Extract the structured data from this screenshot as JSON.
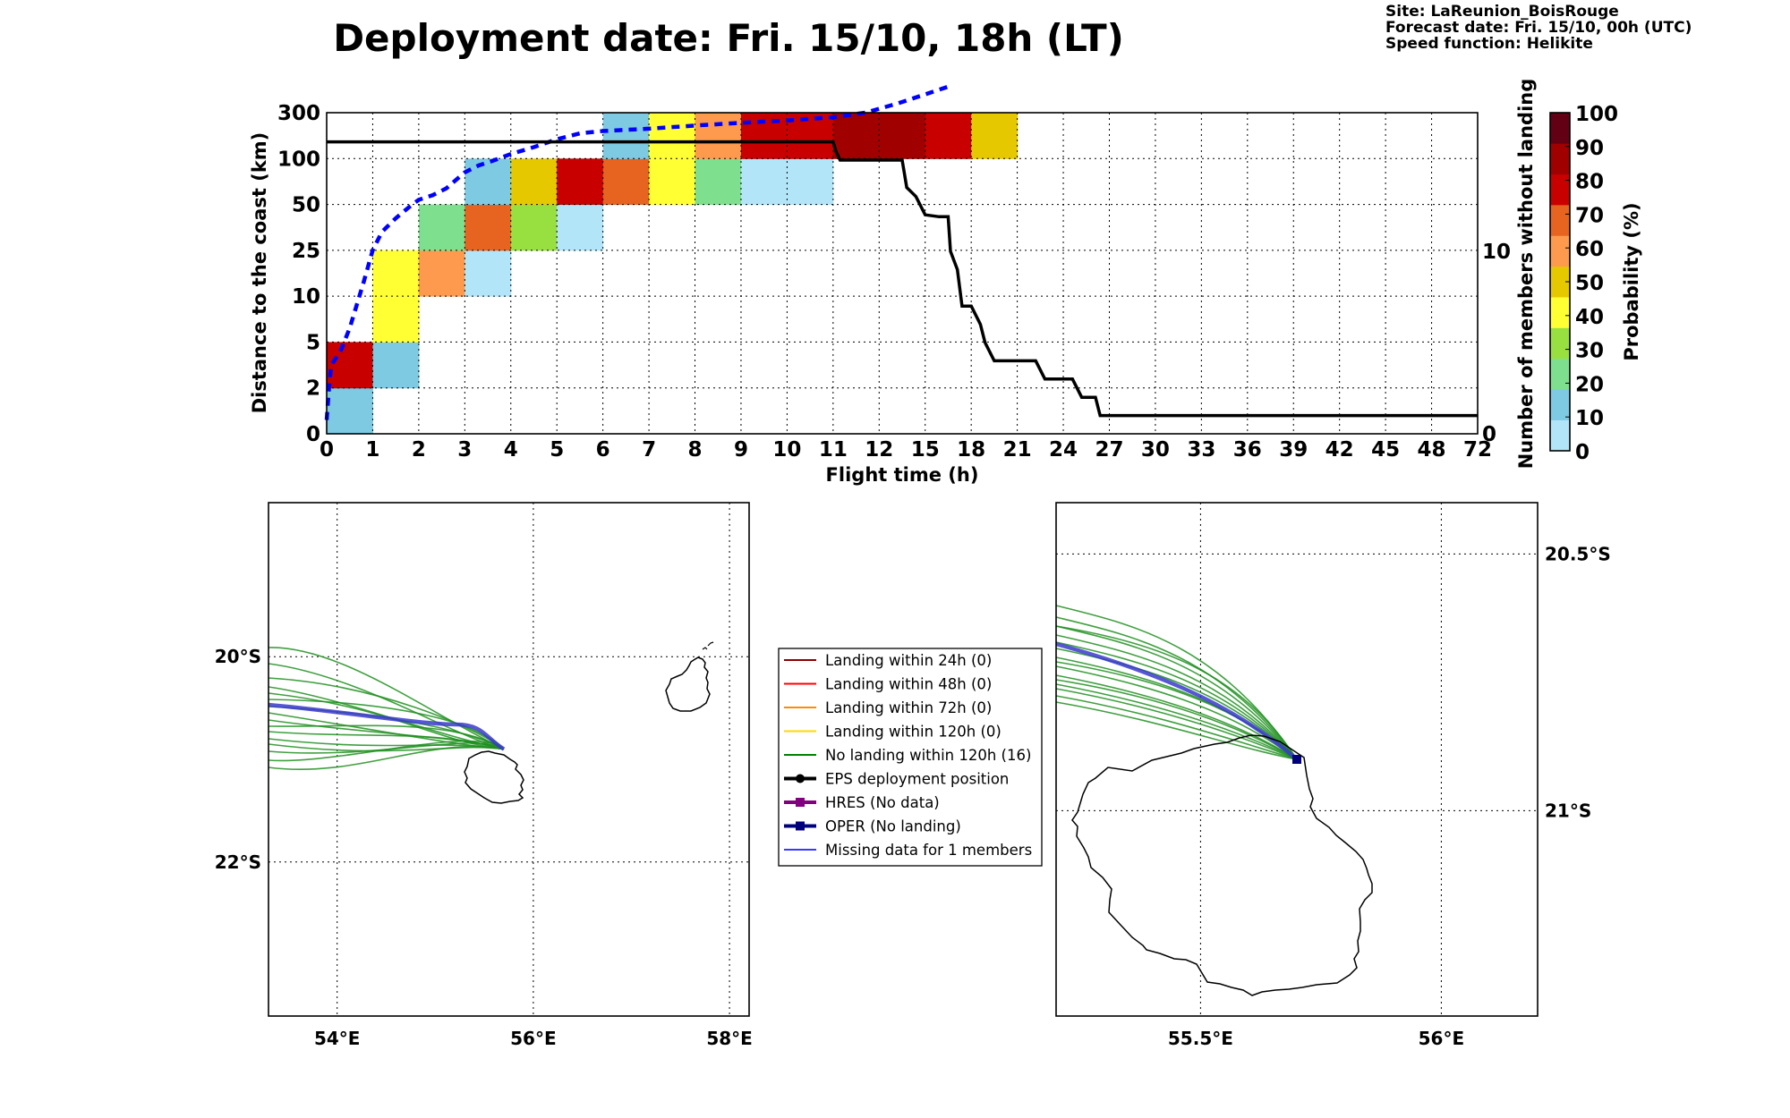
{
  "header": {
    "title": "Deployment date: Fri. 15/10, 18h (LT)",
    "site": "Site: LaReunion_BoisRouge",
    "forecast": "Forecast date: Fri. 15/10, 00h (UTC)",
    "speed": "Speed function: Helikite"
  },
  "chart_data": [
    {
      "type": "heatmap",
      "xlabel": "Flight time (h)",
      "ylabel": "Distance to the coast (km)",
      "y2label": "Number of members without landing",
      "x_ticks": [
        "0",
        "1",
        "2",
        "3",
        "4",
        "5",
        "6",
        "7",
        "8",
        "9",
        "10",
        "11",
        "12",
        "15",
        "18",
        "21",
        "24",
        "27",
        "30",
        "33",
        "36",
        "39",
        "42",
        "45",
        "48",
        "72"
      ],
      "y_ticks": [
        "0",
        "2",
        "5",
        "10",
        "25",
        "50",
        "100",
        "300"
      ],
      "y2_ticks": [
        {
          "label": "0",
          "value": 0
        },
        {
          "label": "10",
          "value": 10
        }
      ],
      "y2_range": [
        0,
        17.6
      ],
      "grid": true,
      "cells": [
        [
          0,
          0,
          10
        ],
        [
          0,
          1,
          85
        ],
        [
          1,
          1,
          10
        ],
        [
          1,
          2,
          40
        ],
        [
          1,
          3,
          40
        ],
        [
          2,
          3,
          60
        ],
        [
          2,
          4,
          20
        ],
        [
          3,
          3,
          5
        ],
        [
          3,
          4,
          70
        ],
        [
          3,
          5,
          10
        ],
        [
          4,
          4,
          30
        ],
        [
          4,
          5,
          50
        ],
        [
          5,
          4,
          5
        ],
        [
          5,
          5,
          85
        ],
        [
          6,
          5,
          70
        ],
        [
          6,
          6,
          10
        ],
        [
          7,
          5,
          40
        ],
        [
          7,
          6,
          40
        ],
        [
          8,
          5,
          20
        ],
        [
          8,
          6,
          60
        ],
        [
          9,
          5,
          5
        ],
        [
          9,
          6,
          85
        ],
        [
          10,
          5,
          5
        ],
        [
          10,
          6,
          85
        ],
        [
          11,
          6,
          95
        ],
        [
          12,
          6,
          95
        ],
        [
          13,
          6,
          85
        ],
        [
          14,
          6,
          50
        ]
      ],
      "series": [
        {
          "name": "",
          "style": "dashed-blue",
          "axis": "distance",
          "points": [
            [
              0,
              0.3
            ],
            [
              0.05,
              1.0
            ],
            [
              0.1,
              1.5
            ],
            [
              0.3,
              1.8
            ],
            [
              0.5,
              2.3
            ],
            [
              0.8,
              3.3
            ],
            [
              1.0,
              4.0
            ],
            [
              1.2,
              4.4
            ],
            [
              1.5,
              4.7
            ],
            [
              1.8,
              4.95
            ],
            [
              2.0,
              5.1
            ],
            [
              2.3,
              5.2
            ],
            [
              2.6,
              5.35
            ],
            [
              3.0,
              5.7
            ],
            [
              3.3,
              5.85
            ],
            [
              3.6,
              5.95
            ],
            [
              4.0,
              6.1
            ],
            [
              4.5,
              6.25
            ],
            [
              5.0,
              6.42
            ],
            [
              5.5,
              6.55
            ],
            [
              6.0,
              6.6
            ],
            [
              7.0,
              6.65
            ],
            [
              8.0,
              6.72
            ],
            [
              9.0,
              6.78
            ],
            [
              10.0,
              6.83
            ],
            [
              11.0,
              6.9
            ],
            [
              11.7,
              7.0
            ],
            [
              12.4,
              7.2
            ],
            [
              13.0,
              7.4
            ],
            [
              13.6,
              7.6
            ]
          ]
        },
        {
          "name": "",
          "style": "solid-black",
          "axis": "members",
          "points": [
            [
              0,
              16
            ],
            [
              11.0,
              16
            ],
            [
              11.06,
              15.5
            ],
            [
              11.15,
              15
            ],
            [
              12.5,
              15
            ],
            [
              12.6,
              13.5
            ],
            [
              12.8,
              13
            ],
            [
              13.0,
              12
            ],
            [
              13.3,
              11.9
            ],
            [
              13.5,
              11.9
            ],
            [
              13.55,
              10
            ],
            [
              13.7,
              9
            ],
            [
              13.8,
              7
            ],
            [
              14.0,
              7
            ],
            [
              14.2,
              6
            ],
            [
              14.3,
              5
            ],
            [
              14.5,
              4
            ],
            [
              15.4,
              4
            ],
            [
              15.6,
              3
            ],
            [
              16.2,
              3
            ],
            [
              16.4,
              2
            ],
            [
              16.7,
              2
            ],
            [
              16.8,
              1
            ],
            [
              25,
              1
            ]
          ]
        }
      ],
      "colorbar": {
        "label": "Probability (%)",
        "ticks": [
          "0",
          "10",
          "20",
          "30",
          "40",
          "50",
          "60",
          "70",
          "80",
          "90",
          "100"
        ],
        "colors": [
          "#b3e5f9",
          "#7dcae2",
          "#7ee08f",
          "#98e040",
          "#ffff33",
          "#e6c800",
          "#fd9a4d",
          "#e66420",
          "#c80000",
          "#a00000",
          "#640014"
        ]
      }
    },
    {
      "type": "map",
      "x_ticks": [
        "54°E",
        "56°E",
        "58°E"
      ],
      "y_ticks": [
        "20°S",
        "22°S"
      ],
      "lon_range": [
        53.3,
        58.2
      ],
      "lat_range": [
        -23.5,
        -18.5
      ],
      "deployment": [
        55.7,
        -20.9
      ]
    },
    {
      "type": "map",
      "x_ticks": [
        "55.5°E",
        "56°E"
      ],
      "y_ticks": [
        "20.5°S",
        "21°S"
      ],
      "lon_range": [
        55.2,
        56.2
      ],
      "lat_range": [
        -21.4,
        -20.4
      ],
      "deployment": [
        55.7,
        -20.9
      ]
    }
  ],
  "legend": [
    {
      "label": "Landing within 24h (0)",
      "color": "#8b0000",
      "marker": "none"
    },
    {
      "label": "Landing within 48h (0)",
      "color": "#ff0000",
      "marker": "none"
    },
    {
      "label": "Landing within 72h (0)",
      "color": "#ff8c00",
      "marker": "none"
    },
    {
      "label": "Landing within 120h (0)",
      "color": "#ffd700",
      "marker": "none"
    },
    {
      "label": "No landing within 120h (16)",
      "color": "#008000",
      "marker": "none"
    },
    {
      "label": "EPS deployment position",
      "color": "#000000",
      "marker": "circle"
    },
    {
      "label": "HRES (No data)",
      "color": "#800080",
      "marker": "square"
    },
    {
      "label": "OPER (No landing)",
      "color": "#00007f",
      "marker": "square"
    },
    {
      "label": "Missing data for 1 members",
      "color": "#3a3aff",
      "marker": "none"
    }
  ]
}
